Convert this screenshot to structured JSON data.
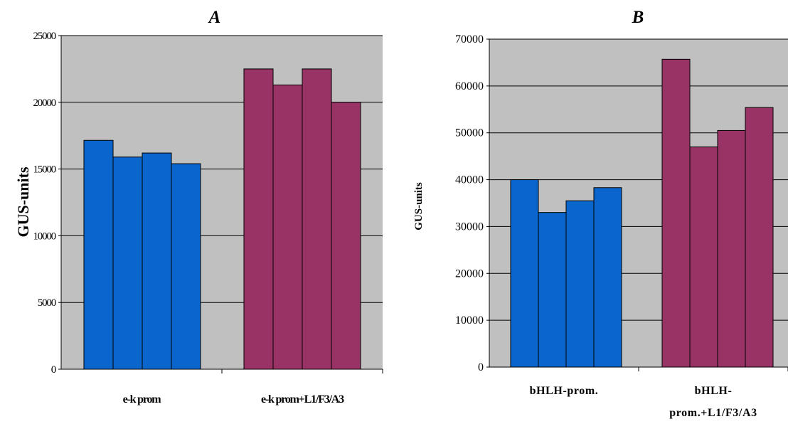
{
  "chart_data": [
    {
      "type": "bar",
      "title": "A",
      "ylabel": "GUS-units",
      "xlabel": "",
      "ylim": [
        0,
        25000
      ],
      "yticks": [
        "0",
        "5000",
        "10000",
        "15000",
        "20000",
        "25000"
      ],
      "categories": [
        "e-k prom",
        "e-k prom+L1/F3/A3"
      ],
      "bar_values": [
        [
          17150,
          15900,
          16200,
          15400
        ],
        [
          22500,
          21300,
          22500,
          20000
        ]
      ],
      "colors": [
        "#0a66cc",
        "#993366"
      ],
      "plot_bg": "#c0c0c0",
      "grid": true,
      "legend": "none"
    },
    {
      "type": "bar",
      "title": "B",
      "ylabel": "GUS-units",
      "xlabel": "",
      "ylim": [
        0,
        70000
      ],
      "yticks": [
        "0",
        "10000",
        "20000",
        "30000",
        "40000",
        "50000",
        "60000",
        "70000"
      ],
      "categories": [
        "bHLH-prom.",
        "bHLH-prom.+L1/F3/A3"
      ],
      "category_lines": [
        [
          "bHLH-prom."
        ],
        [
          "bHLH-",
          "prom.+L1/F3/A3"
        ]
      ],
      "bar_values": [
        [
          40000,
          33000,
          35500,
          38300
        ],
        [
          65700,
          47000,
          50500,
          55400
        ]
      ],
      "colors": [
        "#0a66cc",
        "#993366"
      ],
      "plot_bg": "#c0c0c0",
      "grid": true,
      "legend": "none"
    }
  ]
}
